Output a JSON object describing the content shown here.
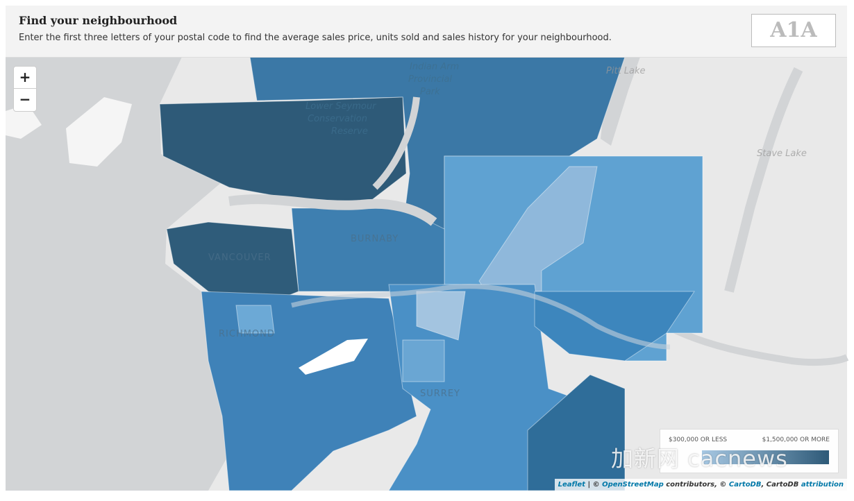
{
  "header": {
    "title": "Find your neighbourhood",
    "subtitle": "Enter the first three letters of your postal code to find the average sales price, units sold and sales history for your neighbourhood.",
    "postal_input_placeholder": "A1A"
  },
  "zoom_controls": {
    "zoom_in": "+",
    "zoom_out": "−"
  },
  "map": {
    "labels": [
      {
        "lines": [
          "Indian Arm",
          "Provincial",
          "Park"
        ]
      },
      {
        "lines": [
          "Lower Seymour",
          "Conservation",
          "Reserve"
        ]
      },
      {
        "lines": [
          "Pitt Lake"
        ]
      },
      {
        "lines": [
          "Stave Lake"
        ]
      },
      {
        "lines": [
          "VANCOUVER"
        ]
      },
      {
        "lines": [
          "BURNABY"
        ]
      },
      {
        "lines": [
          "RICHMOND"
        ]
      },
      {
        "lines": [
          "SURREY"
        ]
      }
    ]
  },
  "legend": {
    "min_label": "$300,000 OR LESS",
    "max_label": "$1,500,000 OR MORE"
  },
  "attribution": [
    {
      "text": "Leaflet",
      "link": true
    },
    {
      "text": " | © ",
      "link": false
    },
    {
      "text": "OpenStreetMap",
      "link": true
    },
    {
      "text": " contributors, © ",
      "link": false
    },
    {
      "text": "CartoDB",
      "link": true
    },
    {
      "text": ", CartoDB ",
      "link": false
    },
    {
      "text": "attribution",
      "link": true
    }
  ],
  "watermark": "加新网 cacnews"
}
